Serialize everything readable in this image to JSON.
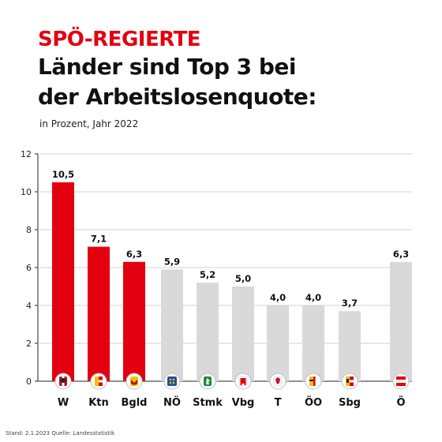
{
  "headline": {
    "line1": "SPÖ-REGIERTE",
    "line2": "Länder sind Top 3 bei",
    "line3": "der Arbeitslosenquote:"
  },
  "subtitle": "in Prozent, Jahr 2022",
  "footer": "Stand: 2.1.2023 Quelle: Landesstatistik",
  "colors": {
    "highlight": "#e3000f",
    "neutral": "#d9d9d9",
    "headline_dark": "#111111"
  },
  "chart_data": {
    "type": "bar",
    "categories": [
      "W",
      "Ktn",
      "Bgld",
      "NÖ",
      "Stmk",
      "Vbg",
      "T",
      "ÖO",
      "Sbg",
      "Ö"
    ],
    "values": [
      10.5,
      7.1,
      6.3,
      5.9,
      5.2,
      5.0,
      4.0,
      4.0,
      3.7,
      6.3
    ],
    "value_labels": [
      "10,5",
      "7,1",
      "6,3",
      "5,9",
      "5,2",
      "5,0",
      "4,0",
      "4,0",
      "3,7",
      "6,3"
    ],
    "highlighted": [
      true,
      true,
      true,
      false,
      false,
      false,
      false,
      false,
      false,
      false
    ],
    "icons": [
      "coat-of-arms-vienna",
      "coat-of-arms-carinthia",
      "coat-of-arms-burgenland",
      "coat-of-arms-lower-austria",
      "coat-of-arms-styria",
      "coat-of-arms-vorarlberg",
      "coat-of-arms-tyrol",
      "coat-of-arms-upper-austria",
      "coat-of-arms-salzburg",
      "flag-austria"
    ],
    "ylim": [
      0,
      12
    ],
    "yticks": [
      0,
      2,
      4,
      6,
      8,
      10,
      12
    ],
    "grid": true,
    "title": "",
    "xlabel": "",
    "ylabel": ""
  }
}
